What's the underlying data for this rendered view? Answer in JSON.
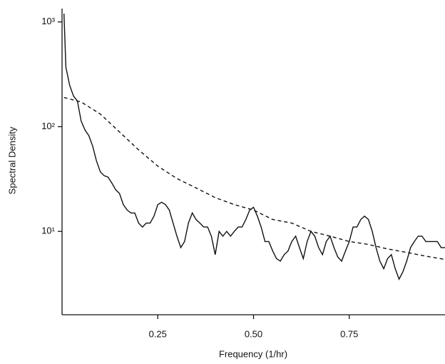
{
  "chart_data": {
    "type": "line",
    "x_label": "Frequency (1/hr)",
    "y_label": "Spectral Density",
    "xlim": [
      0,
      1.0
    ],
    "ylim": [
      1.6,
      1300
    ],
    "log_y": true,
    "grid": false,
    "xticks": [
      0.25,
      {
        "value": 0.5,
        "label": "0.50"
      },
      0.75
    ],
    "yticks": [
      {
        "value": 10,
        "label": "10¹"
      },
      {
        "value": 100,
        "label": "10²"
      },
      {
        "value": 1000,
        "label": "10³"
      }
    ],
    "series": [
      {
        "color": "#111111",
        "dash": false,
        "x": [
          0.005,
          0.01,
          0.02,
          0.03,
          0.04,
          0.05,
          0.06,
          0.07,
          0.08,
          0.09,
          0.1,
          0.11,
          0.12,
          0.13,
          0.14,
          0.15,
          0.16,
          0.17,
          0.18,
          0.19,
          0.2,
          0.21,
          0.22,
          0.23,
          0.24,
          0.25,
          0.26,
          0.27,
          0.28,
          0.29,
          0.3,
          0.31,
          0.32,
          0.33,
          0.34,
          0.35,
          0.36,
          0.37,
          0.38,
          0.39,
          0.4,
          0.41,
          0.42,
          0.43,
          0.44,
          0.45,
          0.46,
          0.47,
          0.48,
          0.49,
          0.5,
          0.51,
          0.52,
          0.53,
          0.54,
          0.55,
          0.56,
          0.57,
          0.58,
          0.59,
          0.6,
          0.61,
          0.62,
          0.63,
          0.64,
          0.65,
          0.66,
          0.67,
          0.68,
          0.69,
          0.7,
          0.71,
          0.72,
          0.73,
          0.74,
          0.75,
          0.76,
          0.77,
          0.78,
          0.79,
          0.8,
          0.81,
          0.82,
          0.83,
          0.84,
          0.85,
          0.86,
          0.87,
          0.88,
          0.89,
          0.9,
          0.91,
          0.92,
          0.93,
          0.94,
          0.95,
          0.96,
          0.97,
          0.98,
          0.99,
          1.0
        ],
        "values": [
          1200,
          369,
          248,
          196,
          176,
          113,
          93,
          82,
          65,
          47,
          37,
          34,
          33,
          29,
          25,
          23,
          18,
          16,
          15,
          15,
          12,
          11,
          12,
          12,
          14,
          18,
          19,
          18,
          16,
          12,
          9,
          7,
          8,
          12,
          15,
          13,
          12,
          11,
          11,
          9,
          6,
          10,
          9,
          10,
          9,
          10,
          11,
          11,
          13,
          16,
          17,
          14,
          11,
          8,
          8,
          6.5,
          5.5,
          5.2,
          6,
          6.5,
          8,
          9,
          7,
          5.5,
          8,
          10,
          9,
          7,
          6,
          8,
          9,
          7,
          5.7,
          5.2,
          6.5,
          8,
          11,
          11,
          13,
          14,
          13,
          10,
          7,
          5.2,
          4.4,
          5.5,
          6,
          4.4,
          3.5,
          4.1,
          5.2,
          7,
          8,
          9,
          9,
          8,
          8,
          8,
          8,
          7,
          7
        ]
      },
      {
        "color": "#111111",
        "dash": true,
        "x": [
          0.005,
          0.05,
          0.1,
          0.15,
          0.2,
          0.25,
          0.3,
          0.35,
          0.4,
          0.45,
          0.5,
          0.55,
          0.6,
          0.65,
          0.7,
          0.75,
          0.8,
          0.85,
          0.9,
          0.95,
          1.0
        ],
        "values": [
          190,
          172,
          132,
          89,
          60,
          42,
          32,
          26,
          21,
          18,
          16,
          13,
          12,
          10,
          9,
          8,
          7.5,
          6.8,
          6.3,
          5.8,
          5.4
        ]
      }
    ]
  }
}
